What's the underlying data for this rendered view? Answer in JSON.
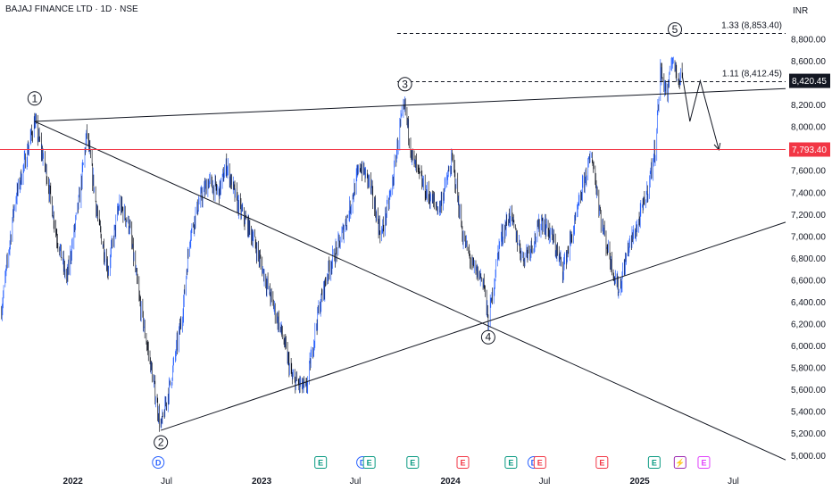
{
  "header": {
    "title": "BAJAJ FINANCE LTD · 1D · NSE"
  },
  "currency": "INR",
  "price_tags": {
    "last": "8,420.45",
    "red_line": "7,793.40"
  },
  "fib_levels": [
    {
      "label": "1.33 (8,853.40)",
      "value": 8853.4
    },
    {
      "label": "1.11 (8,412.45)",
      "value": 8412.45
    }
  ],
  "horizontal_line": {
    "value": 7793.4,
    "color": "#f23645"
  },
  "colors": {
    "up": "#2962ff",
    "down": "#131722",
    "line": "#131722",
    "accent_red": "#f23645"
  },
  "chart_data": {
    "type": "candlestick",
    "y_axis": {
      "ticks": [
        "8,800.00",
        "8,600.00",
        "8,400.00",
        "8,200.00",
        "8,000.00",
        "7,800.00",
        "7,600.00",
        "7,400.00",
        "7,200.00",
        "7,000.00",
        "6,800.00",
        "6,600.00",
        "6,400.00",
        "6,200.00",
        "6,000.00",
        "5,800.00",
        "5,600.00",
        "5,400.00",
        "5,200.00",
        "5,000.00"
      ],
      "tick_values": [
        8800,
        8600,
        8400,
        8200,
        8000,
        7800,
        7600,
        7400,
        7200,
        7000,
        6800,
        6600,
        6400,
        6200,
        6000,
        5800,
        5600,
        5400,
        5200,
        5000
      ],
      "range": [
        4900,
        9150
      ]
    },
    "x_axis": {
      "range": [
        "2021-08-13",
        "2025-10-10"
      ],
      "ticks": [
        {
          "label": "2022",
          "date": "2022-01-01",
          "bold": true
        },
        {
          "label": "Jul",
          "date": "2022-07-01",
          "bold": false
        },
        {
          "label": "2023",
          "date": "2023-01-01",
          "bold": true
        },
        {
          "label": "Jul",
          "date": "2023-07-01",
          "bold": false
        },
        {
          "label": "2024",
          "date": "2024-01-01",
          "bold": true
        },
        {
          "label": "Jul",
          "date": "2024-07-01",
          "bold": false
        },
        {
          "label": "2025",
          "date": "2025-01-01",
          "bold": true
        },
        {
          "label": "Jul",
          "date": "2025-07-01",
          "bold": false
        }
      ]
    },
    "price_path": [
      [
        "2021-08-15",
        6300
      ],
      [
        "2021-09-10",
        7300
      ],
      [
        "2021-10-01",
        7700
      ],
      [
        "2021-10-19",
        8050
      ],
      [
        "2021-11-10",
        7600
      ],
      [
        "2021-12-01",
        7000
      ],
      [
        "2021-12-20",
        6600
      ],
      [
        "2022-01-15",
        7400
      ],
      [
        "2022-01-28",
        7950
      ],
      [
        "2022-02-20",
        7100
      ],
      [
        "2022-03-10",
        6700
      ],
      [
        "2022-04-01",
        7300
      ],
      [
        "2022-04-20",
        7100
      ],
      [
        "2022-05-10",
        6400
      ],
      [
        "2022-06-01",
        5800
      ],
      [
        "2022-06-20",
        5250
      ],
      [
        "2022-07-10",
        5700
      ],
      [
        "2022-08-01",
        6300
      ],
      [
        "2022-08-15",
        7000
      ],
      [
        "2022-09-01",
        7300
      ],
      [
        "2022-09-20",
        7500
      ],
      [
        "2022-10-10",
        7400
      ],
      [
        "2022-10-25",
        7650
      ],
      [
        "2022-11-15",
        7300
      ],
      [
        "2022-12-15",
        7000
      ],
      [
        "2023-01-15",
        6500
      ],
      [
        "2023-02-10",
        6100
      ],
      [
        "2023-03-01",
        5700
      ],
      [
        "2023-03-28",
        5600
      ],
      [
        "2023-04-20",
        6300
      ],
      [
        "2023-05-10",
        6700
      ],
      [
        "2023-06-01",
        6950
      ],
      [
        "2023-06-20",
        7250
      ],
      [
        "2023-07-10",
        7650
      ],
      [
        "2023-07-28",
        7500
      ],
      [
        "2023-08-20",
        7000
      ],
      [
        "2023-09-10",
        7450
      ],
      [
        "2023-09-25",
        8000
      ],
      [
        "2023-10-05",
        8180
      ],
      [
        "2023-10-20",
        7700
      ],
      [
        "2023-11-15",
        7400
      ],
      [
        "2023-12-10",
        7250
      ],
      [
        "2024-01-05",
        7700
      ],
      [
        "2024-01-25",
        7000
      ],
      [
        "2024-02-15",
        6700
      ],
      [
        "2024-03-05",
        6600
      ],
      [
        "2024-03-14",
        6200
      ],
      [
        "2024-04-05",
        6950
      ],
      [
        "2024-04-25",
        7200
      ],
      [
        "2024-05-20",
        6800
      ],
      [
        "2024-06-10",
        6950
      ],
      [
        "2024-06-25",
        7150
      ],
      [
        "2024-07-15",
        7000
      ],
      [
        "2024-08-05",
        6700
      ],
      [
        "2024-08-28",
        7100
      ],
      [
        "2024-09-15",
        7500
      ],
      [
        "2024-09-30",
        7750
      ],
      [
        "2024-10-20",
        7100
      ],
      [
        "2024-11-10",
        6700
      ],
      [
        "2024-11-22",
        6500
      ],
      [
        "2024-12-10",
        6900
      ],
      [
        "2024-12-28",
        7100
      ],
      [
        "2025-01-15",
        7400
      ],
      [
        "2025-01-31",
        7800
      ],
      [
        "2025-02-10",
        8500
      ],
      [
        "2025-02-24",
        8300
      ],
      [
        "2025-03-05",
        8650
      ],
      [
        "2025-03-14",
        8450
      ],
      [
        "2025-03-25",
        8500
      ]
    ],
    "projection": [
      [
        "2025-03-25",
        8450
      ],
      [
        "2025-04-08",
        8050
      ],
      [
        "2025-04-28",
        8420
      ],
      [
        "2025-06-03",
        7790
      ]
    ],
    "trendlines": [
      {
        "name": "upper-resistance-line",
        "p1": [
          "2021-10-19",
          8050
        ],
        "p2": [
          "2025-10-10",
          8350
        ]
      },
      {
        "name": "upper-falling-line",
        "p1": [
          "2021-10-19",
          8050
        ],
        "p2": [
          "2025-10-10",
          4960
        ]
      },
      {
        "name": "lower-support-line",
        "p1": [
          "2022-06-20",
          5230
        ],
        "p2": [
          "2025-10-10",
          7130
        ]
      }
    ],
    "wave_labels": [
      {
        "label": "1",
        "date": "2021-10-19",
        "value": 8260
      },
      {
        "label": "2",
        "date": "2022-06-20",
        "value": 5120
      },
      {
        "label": "3",
        "date": "2023-10-05",
        "value": 8390
      },
      {
        "label": "4",
        "date": "2024-03-14",
        "value": 6080
      },
      {
        "label": "5",
        "date": "2025-03-10",
        "value": 8890
      }
    ],
    "events": [
      {
        "date": "2022-06-15",
        "letter": "D",
        "color": "#2962ff"
      },
      {
        "date": "2023-04-25",
        "letter": "E",
        "color": "#089981"
      },
      {
        "date": "2023-07-15",
        "letter": "D",
        "color": "#2962ff"
      },
      {
        "date": "2023-07-28",
        "letter": "E",
        "color": "#089981"
      },
      {
        "date": "2023-10-20",
        "letter": "E",
        "color": "#089981"
      },
      {
        "date": "2024-01-25",
        "letter": "E",
        "color": "#f23645"
      },
      {
        "date": "2024-04-27",
        "letter": "E",
        "color": "#089981"
      },
      {
        "date": "2024-06-10",
        "letter": "D",
        "color": "#2962ff"
      },
      {
        "date": "2024-06-22",
        "letter": "E",
        "color": "#f23645"
      },
      {
        "date": "2024-10-20",
        "letter": "E",
        "color": "#f23645"
      },
      {
        "date": "2025-01-29",
        "letter": "E",
        "color": "#089981"
      },
      {
        "date": "2025-03-20",
        "letter": "⚡",
        "color": "#9c27b0"
      },
      {
        "date": "2025-05-05",
        "letter": "E",
        "color": "#e040fb"
      }
    ]
  }
}
